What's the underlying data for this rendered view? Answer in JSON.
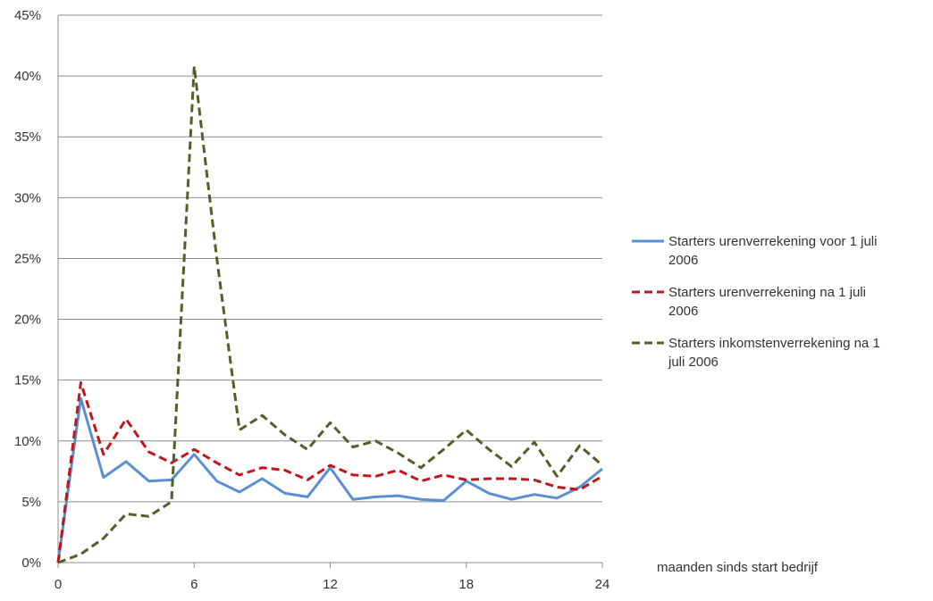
{
  "chart_data": {
    "type": "line",
    "title": "",
    "xlabel": "maanden sinds start bedrijf",
    "ylabel": "",
    "xlim": [
      0,
      24
    ],
    "ylim": [
      0,
      45
    ],
    "x_ticks": [
      0,
      6,
      12,
      18,
      24
    ],
    "x_tick_labels": [
      "0",
      "6",
      "12",
      "18",
      "24"
    ],
    "y_ticks": [
      0,
      5,
      10,
      15,
      20,
      25,
      30,
      35,
      40,
      45
    ],
    "y_tick_labels": [
      "0%",
      "5%",
      "10%",
      "15%",
      "20%",
      "25%",
      "30%",
      "35%",
      "40%",
      "45%"
    ],
    "grid": "horizontal",
    "legend_position": "right",
    "x": [
      0,
      1,
      2,
      3,
      4,
      5,
      6,
      7,
      8,
      9,
      10,
      11,
      12,
      13,
      14,
      15,
      16,
      17,
      18,
      19,
      20,
      21,
      22,
      23,
      24
    ],
    "series": [
      {
        "name": "Starters urenverrekening voor 1 juli 2006",
        "legend_lines": [
          "Starters urenverrekening voor 1 juli",
          "2006"
        ],
        "color": "#5b8fd4",
        "dash": "solid",
        "values": [
          0,
          13.5,
          7.0,
          8.3,
          6.7,
          6.8,
          8.9,
          6.7,
          5.8,
          6.9,
          5.7,
          5.4,
          7.8,
          5.2,
          5.4,
          5.5,
          5.2,
          5.1,
          6.7,
          5.7,
          5.2,
          5.6,
          5.3,
          6.2,
          7.7
        ]
      },
      {
        "name": "Starters urenverrekening na 1 juli 2006",
        "legend_lines": [
          "Starters urenverrekening na 1 juli",
          "2006"
        ],
        "color": "#c0161c",
        "dash": "dashed",
        "values": [
          0,
          14.8,
          8.9,
          11.8,
          9.1,
          8.2,
          9.3,
          8.2,
          7.2,
          7.8,
          7.6,
          6.8,
          8.0,
          7.2,
          7.1,
          7.6,
          6.7,
          7.2,
          6.8,
          6.9,
          6.9,
          6.8,
          6.2,
          6.0,
          7.1
        ]
      },
      {
        "name": "Starters inkomstenverrekening na 1 juli 2006",
        "legend_lines": [
          "Starters inkomstenverrekening na 1",
          "juli 2006"
        ],
        "color": "#4f6128",
        "dash": "dashed",
        "values": [
          0,
          0.7,
          2.0,
          4.0,
          3.8,
          5.0,
          40.8,
          25.0,
          10.9,
          12.1,
          10.5,
          9.3,
          11.5,
          9.5,
          10.0,
          9.0,
          7.8,
          9.3,
          10.9,
          9.3,
          7.9,
          9.9,
          7.1,
          9.6,
          8.0
        ]
      }
    ]
  }
}
